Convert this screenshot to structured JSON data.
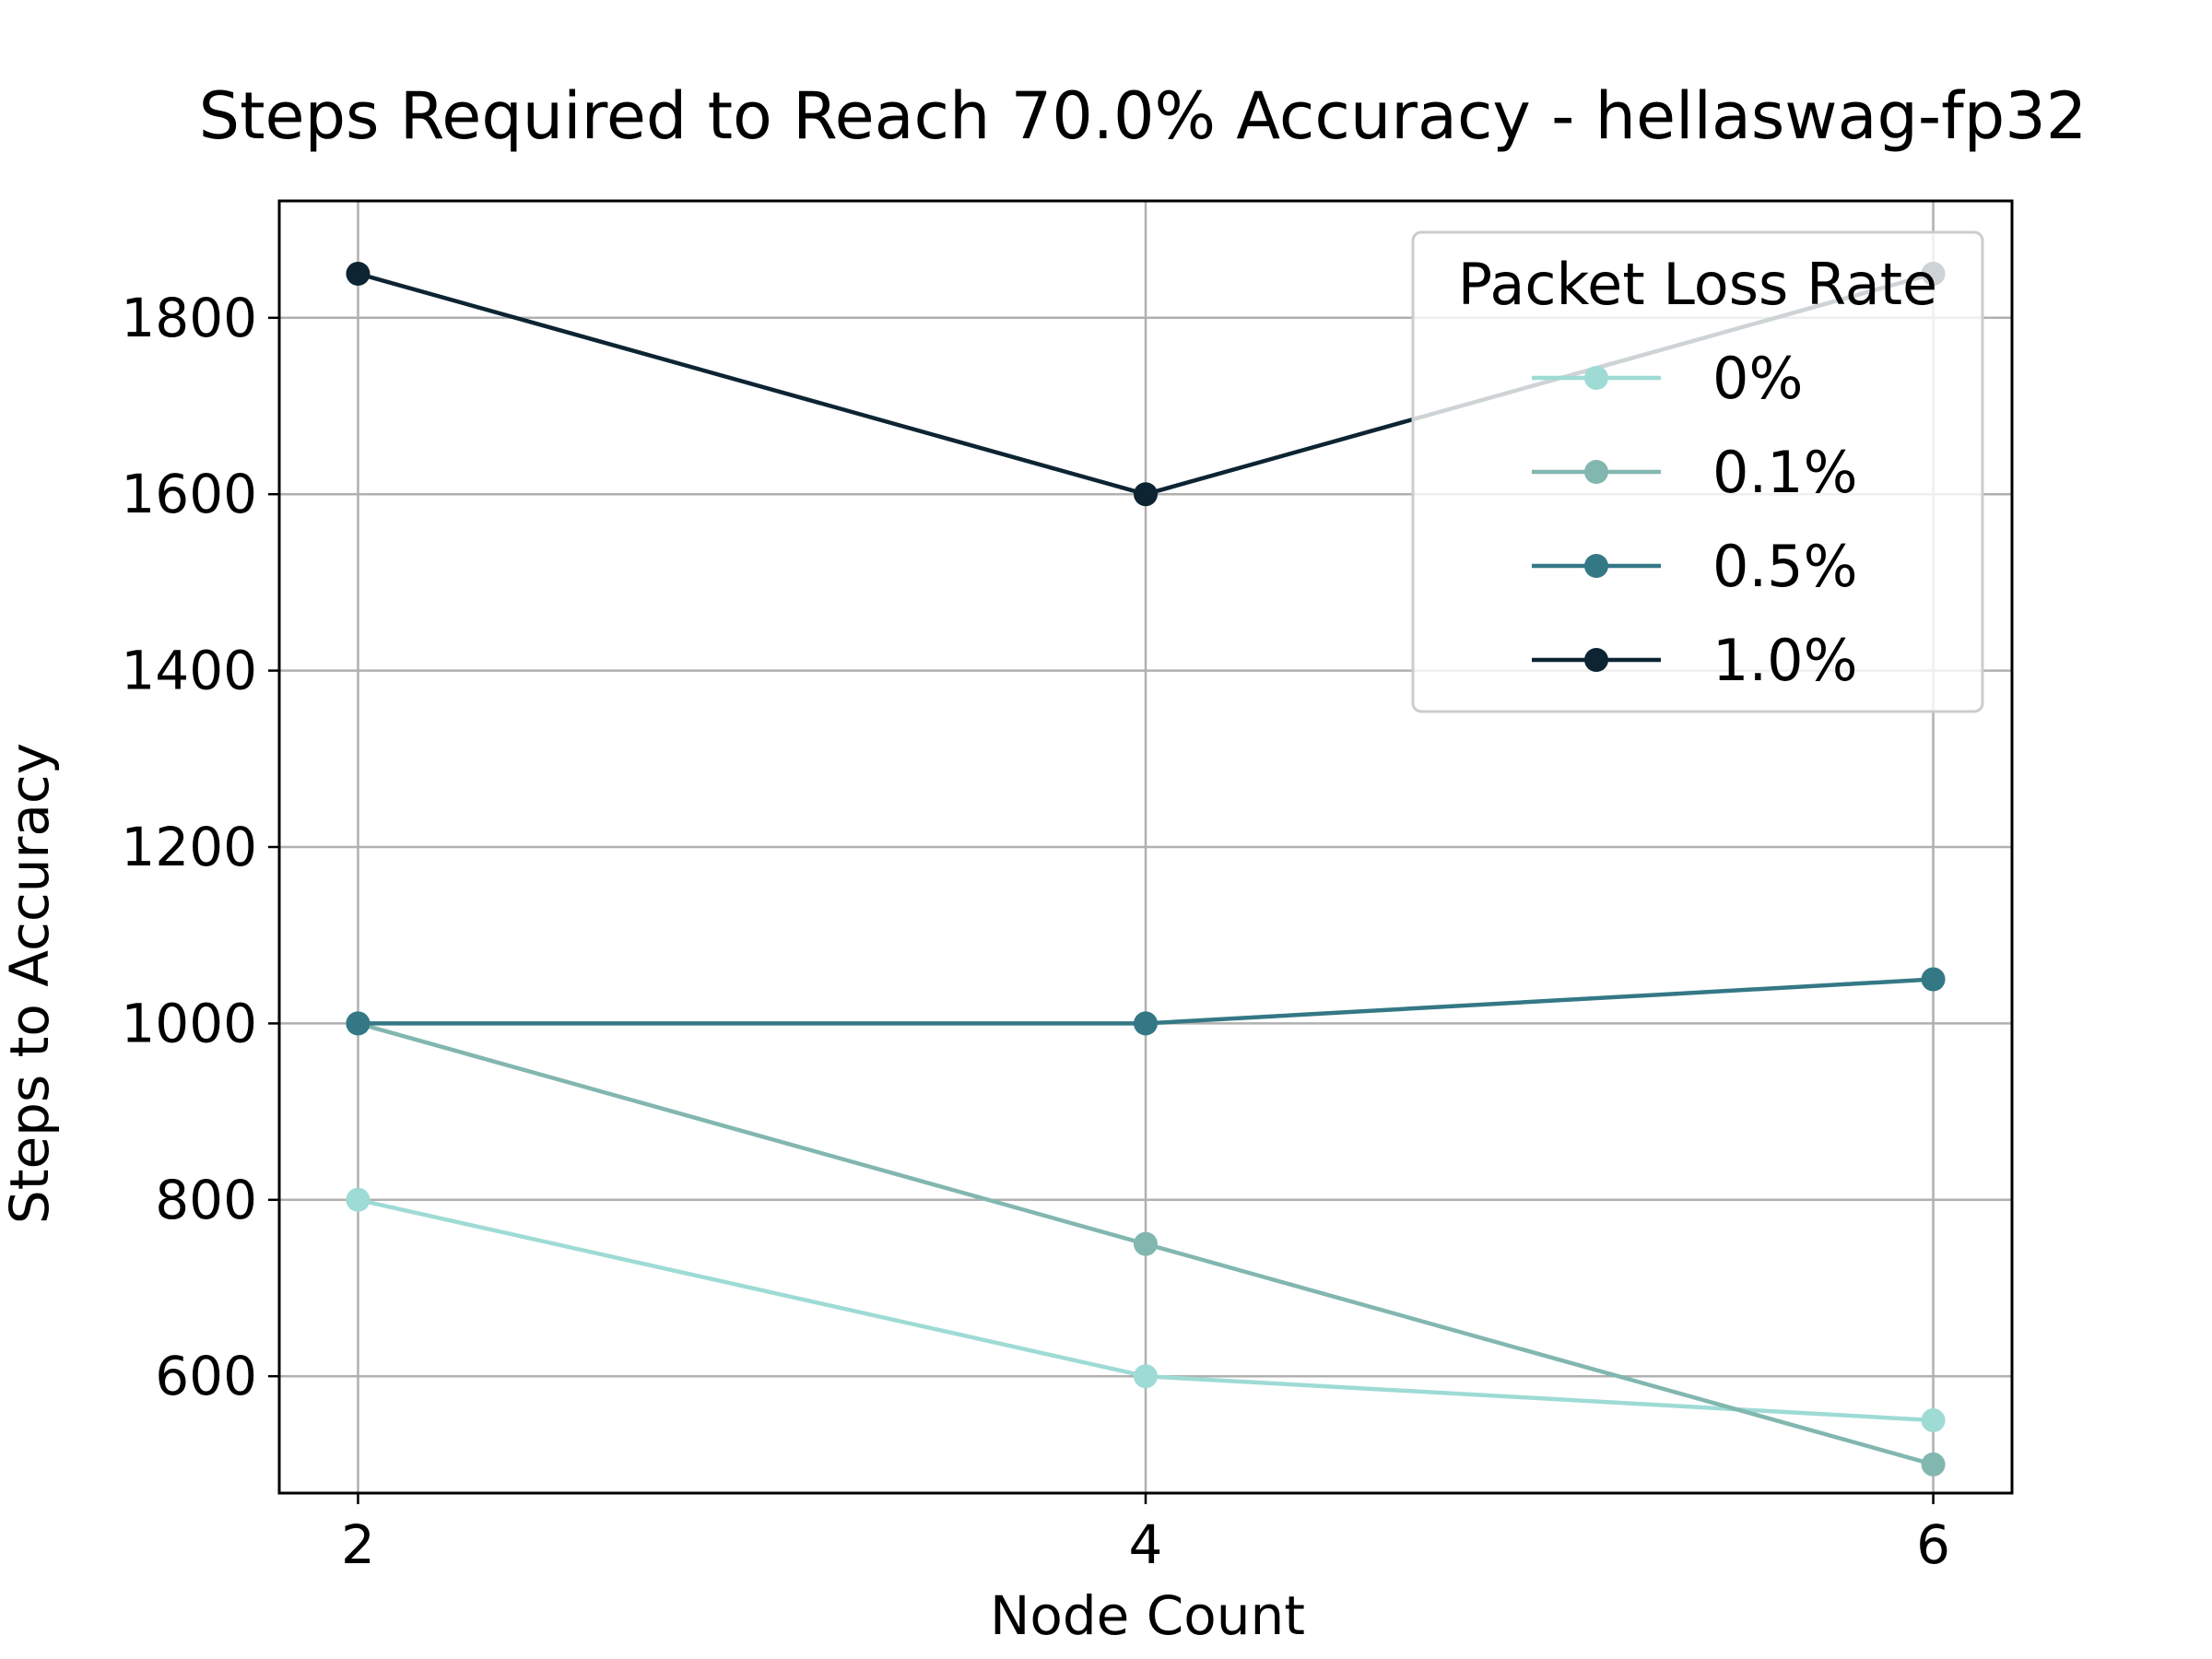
{
  "chart_data": {
    "type": "line",
    "title": "Steps Required to Reach 70.0% Accuracy - hellaswag-fp32",
    "xlabel": "Node Count",
    "ylabel": "Steps to Accuracy",
    "x": [
      2,
      4,
      6
    ],
    "xticks": [
      "2",
      "4",
      "6"
    ],
    "yticks": [
      "600",
      "800",
      "1000",
      "1200",
      "1400",
      "1600",
      "1800"
    ],
    "xlim": [
      1.8,
      6.2
    ],
    "ylim": [
      467.5,
      1932.5
    ],
    "grid": true,
    "legend": {
      "title": "Packet Loss Rate",
      "placement": "top-right"
    },
    "series": [
      {
        "name": "0%",
        "color": "#9edbd5",
        "values": [
          800,
          600,
          550
        ]
      },
      {
        "name": "0.1%",
        "color": "#82b7b0",
        "values": [
          1000,
          750,
          500
        ]
      },
      {
        "name": "0.5%",
        "color": "#347886",
        "values": [
          1000,
          1000,
          1050
        ]
      },
      {
        "name": "1.0%",
        "color": "#0d2433",
        "values": [
          1850,
          1600,
          1850
        ]
      }
    ]
  }
}
